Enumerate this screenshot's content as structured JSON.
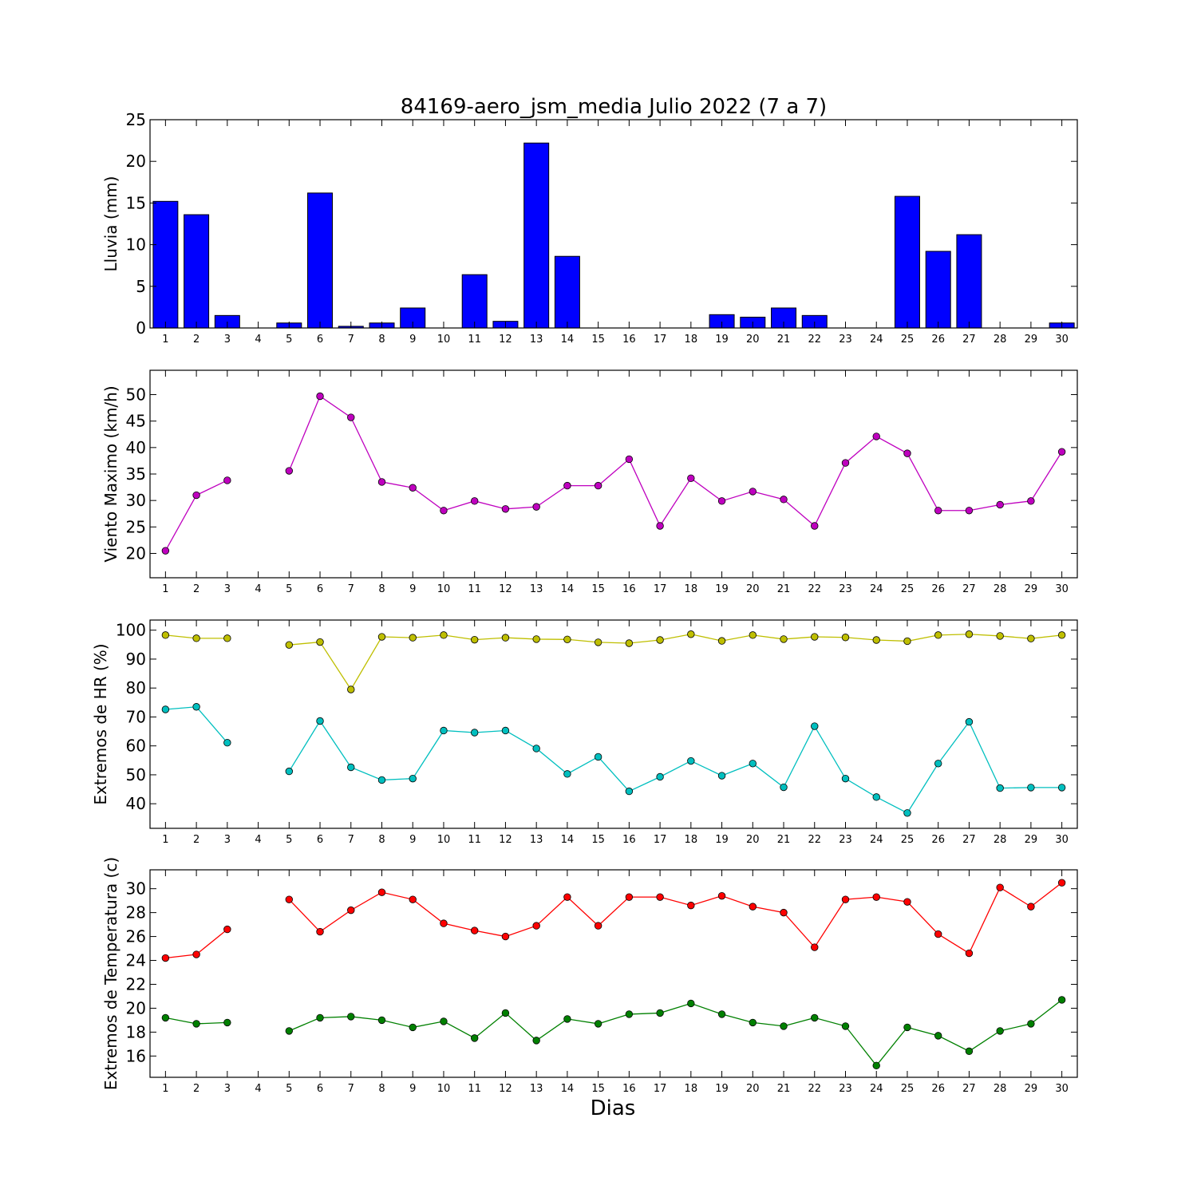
{
  "figure": {
    "title": "84169-aero_jsm_media Julio 2022  (7 a 7)",
    "xlabel": "Dias"
  },
  "colors": {
    "rain": "#0000ff",
    "wind": "#bf00bf",
    "hr_max": "#bfbf00",
    "hr_min": "#00bfbf",
    "temp_max": "#ff0000",
    "temp_min": "#008000"
  },
  "chart_data": [
    {
      "type": "bar",
      "ylabel": "Lluvia (mm)",
      "categories": [
        1,
        2,
        3,
        4,
        5,
        6,
        7,
        8,
        9,
        10,
        11,
        12,
        13,
        14,
        15,
        16,
        17,
        18,
        19,
        20,
        21,
        22,
        23,
        24,
        25,
        26,
        27,
        28,
        29,
        30
      ],
      "values": [
        15.2,
        13.6,
        1.5,
        0,
        0.6,
        16.2,
        0.2,
        0.6,
        2.4,
        0,
        6.4,
        0.8,
        22.2,
        8.6,
        0,
        0,
        0,
        0,
        1.6,
        1.3,
        2.4,
        1.5,
        0,
        0,
        15.8,
        9.2,
        11.2,
        0,
        0,
        0.6
      ],
      "ylim": [
        0,
        25
      ],
      "yticks": [
        0,
        5,
        10,
        15,
        20,
        25
      ],
      "series": [
        {
          "values": [
            15.2,
            13.6,
            1.5,
            0,
            0.6,
            16.2,
            0.2,
            0.6,
            2.4,
            0,
            6.4,
            0.8,
            22.2,
            8.6,
            0,
            0,
            0,
            0,
            1.6,
            1.3,
            2.4,
            1.5,
            0,
            0,
            15.8,
            9.2,
            11.2,
            0,
            0,
            0.6
          ]
        }
      ]
    },
    {
      "type": "line",
      "ylabel": "Viento Maximo (km/h)",
      "x": [
        1,
        2,
        3,
        4,
        5,
        6,
        7,
        8,
        9,
        10,
        11,
        12,
        13,
        14,
        15,
        16,
        17,
        18,
        19,
        20,
        21,
        22,
        23,
        24,
        25,
        26,
        27,
        28,
        29,
        30
      ],
      "ylim": [
        15.4,
        54.6
      ],
      "yticks": [
        20,
        25,
        30,
        35,
        40,
        45,
        50
      ],
      "series": [
        {
          "values": [
            20.5,
            31.0,
            33.8,
            null,
            35.6,
            49.7,
            45.7,
            33.5,
            32.4,
            28.1,
            29.9,
            28.4,
            28.8,
            32.8,
            32.8,
            37.8,
            25.2,
            34.2,
            29.9,
            31.7,
            30.2,
            25.2,
            37.1,
            42.1,
            38.9,
            28.1,
            28.1,
            29.2,
            29.9,
            39.2
          ]
        }
      ]
    },
    {
      "type": "line",
      "ylabel": "Extremos de HR (%)",
      "x": [
        1,
        2,
        3,
        4,
        5,
        6,
        7,
        8,
        9,
        10,
        11,
        12,
        13,
        14,
        15,
        16,
        17,
        18,
        19,
        20,
        21,
        22,
        23,
        24,
        25,
        26,
        27,
        28,
        29,
        30
      ],
      "ylim": [
        31.5,
        103.5
      ],
      "yticks": [
        40,
        50,
        60,
        70,
        80,
        90,
        100
      ],
      "series": [
        {
          "values": [
            98.3,
            97.2,
            97.2,
            null,
            94.9,
            95.9,
            79.5,
            97.7,
            97.4,
            98.3,
            96.7,
            97.4,
            96.9,
            96.8,
            95.8,
            95.5,
            96.6,
            98.6,
            96.3,
            98.3,
            96.9,
            97.7,
            97.5,
            96.6,
            96.2,
            98.3,
            98.6,
            98.0,
            97.1,
            98.3
          ]
        },
        {
          "values": [
            72.6,
            73.5,
            61.1,
            null,
            51.2,
            68.6,
            52.6,
            48.2,
            48.7,
            65.3,
            64.6,
            65.3,
            59.1,
            50.3,
            56.2,
            44.3,
            49.3,
            54.8,
            49.7,
            53.9,
            45.7,
            66.8,
            48.7,
            42.3,
            36.8,
            53.9,
            68.3,
            45.4,
            45.6,
            45.6
          ]
        }
      ]
    },
    {
      "type": "line",
      "ylabel": "Extremos de Temperatura (c)",
      "x": [
        1,
        2,
        3,
        4,
        5,
        6,
        7,
        8,
        9,
        10,
        11,
        12,
        13,
        14,
        15,
        16,
        17,
        18,
        19,
        20,
        21,
        22,
        23,
        24,
        25,
        26,
        27,
        28,
        29,
        30
      ],
      "ylim": [
        14.22,
        31.58
      ],
      "yticks": [
        16,
        18,
        20,
        22,
        24,
        26,
        28,
        30
      ],
      "series": [
        {
          "values": [
            24.2,
            24.5,
            26.6,
            null,
            29.1,
            26.4,
            28.2,
            29.7,
            29.1,
            27.1,
            26.5,
            26.0,
            26.9,
            29.3,
            26.9,
            29.3,
            29.3,
            28.6,
            29.4,
            28.5,
            28.0,
            25.1,
            29.1,
            29.3,
            28.9,
            26.2,
            24.6,
            30.1,
            28.5,
            30.5
          ]
        },
        {
          "values": [
            19.2,
            18.7,
            18.8,
            null,
            18.1,
            19.2,
            19.3,
            19.0,
            18.4,
            18.9,
            17.5,
            19.6,
            17.3,
            19.1,
            18.7,
            19.5,
            19.6,
            20.4,
            19.5,
            18.8,
            18.5,
            19.2,
            18.5,
            15.2,
            18.4,
            17.7,
            16.4,
            18.1,
            18.7,
            20.7
          ]
        }
      ]
    }
  ]
}
